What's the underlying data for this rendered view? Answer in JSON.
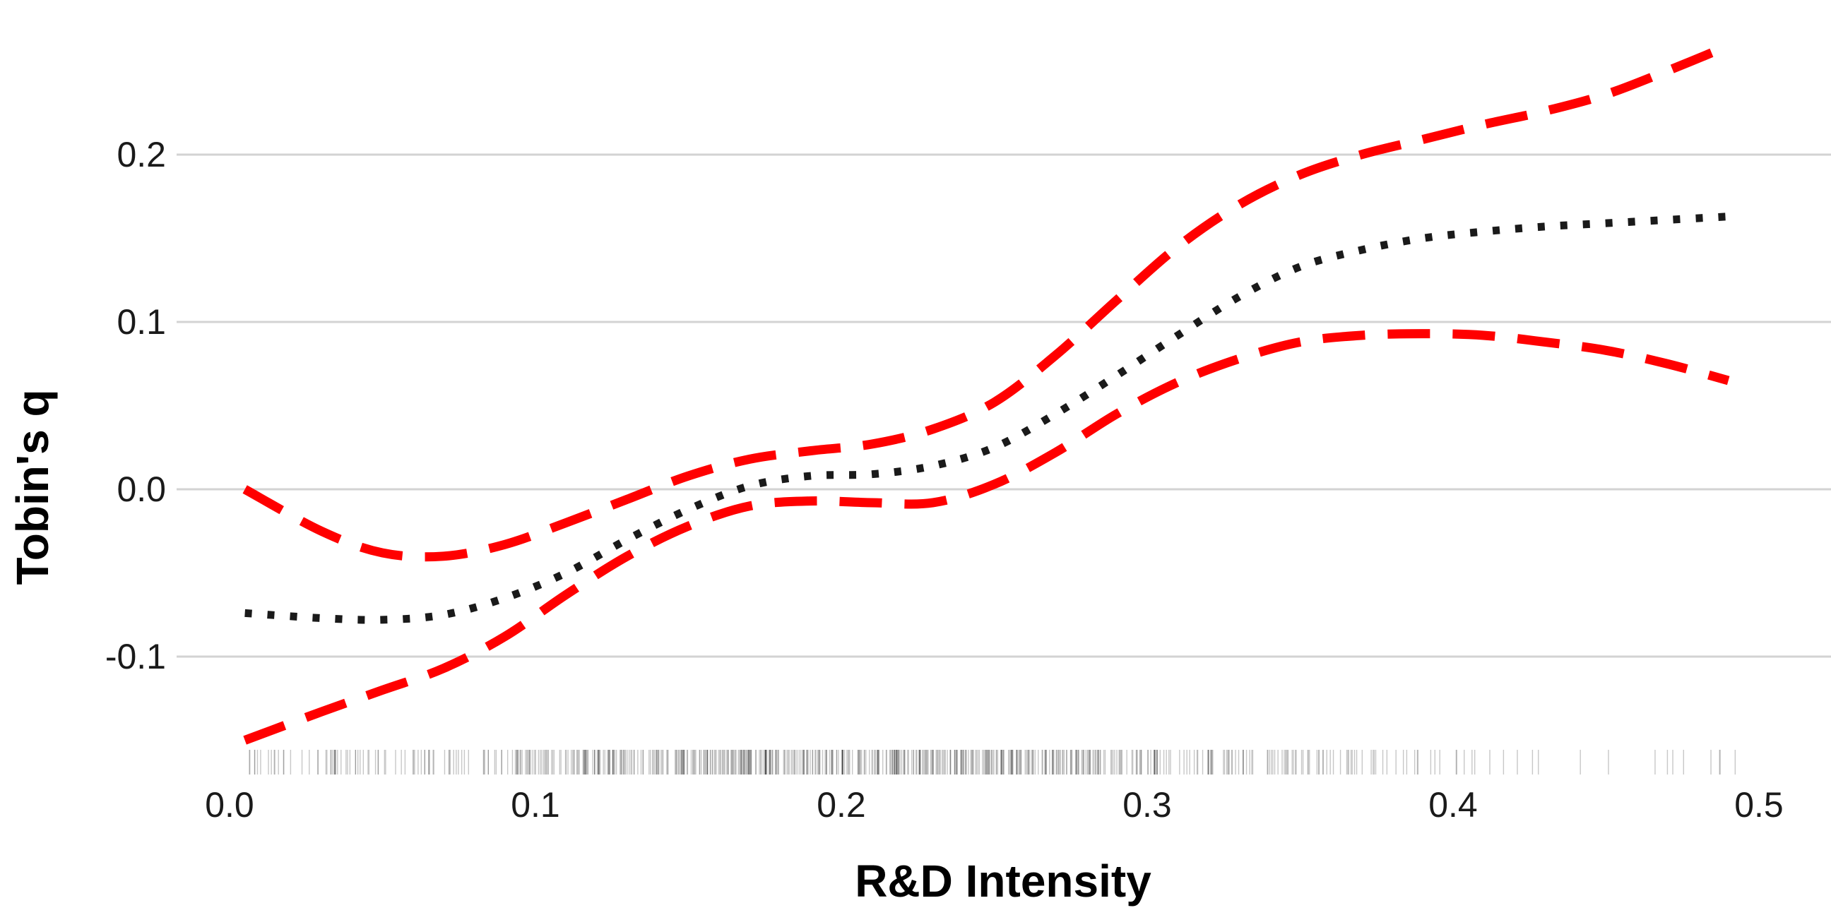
{
  "chart_data": {
    "type": "line",
    "title": "",
    "xlabel": "R&D Intensity",
    "ylabel": "Tobin's q",
    "xlim": [
      0.0,
      0.5
    ],
    "ylim": [
      -0.15,
      0.2
    ],
    "x_ticks": [
      "0.0",
      "0.1",
      "0.2",
      "0.3",
      "0.4",
      "0.5"
    ],
    "y_ticks": [
      "-0.1",
      "0.0",
      "0.1",
      "0.2"
    ],
    "grid": "horizontal",
    "legend": "none",
    "rug": true,
    "series": [
      {
        "role": "estimate",
        "style": "dotted",
        "color": "#1a1a1a",
        "x": [
          0.005,
          0.03,
          0.05,
          0.07,
          0.09,
          0.11,
          0.13,
          0.15,
          0.17,
          0.19,
          0.21,
          0.23,
          0.25,
          0.27,
          0.29,
          0.31,
          0.33,
          0.35,
          0.37,
          0.39,
          0.41,
          0.43,
          0.45,
          0.47,
          0.49
        ],
        "y": [
          -0.074,
          -0.077,
          -0.078,
          -0.075,
          -0.065,
          -0.05,
          -0.03,
          -0.012,
          0.002,
          0.008,
          0.009,
          0.014,
          0.025,
          0.045,
          0.068,
          0.092,
          0.115,
          0.133,
          0.143,
          0.15,
          0.154,
          0.157,
          0.159,
          0.161,
          0.163
        ]
      },
      {
        "role": "upper bound",
        "style": "dashed",
        "color": "#ff0000",
        "x": [
          0.005,
          0.03,
          0.05,
          0.07,
          0.09,
          0.11,
          0.13,
          0.15,
          0.17,
          0.19,
          0.21,
          0.23,
          0.25,
          0.27,
          0.29,
          0.31,
          0.33,
          0.35,
          0.37,
          0.39,
          0.41,
          0.43,
          0.45,
          0.47,
          0.49
        ],
        "y": [
          0.0,
          -0.025,
          -0.038,
          -0.04,
          -0.033,
          -0.02,
          -0.006,
          0.008,
          0.018,
          0.023,
          0.027,
          0.036,
          0.052,
          0.08,
          0.113,
          0.145,
          0.17,
          0.188,
          0.2,
          0.209,
          0.218,
          0.226,
          0.236,
          0.25,
          0.265
        ]
      },
      {
        "role": "lower bound",
        "style": "dashed",
        "color": "#ff0000",
        "x": [
          0.005,
          0.03,
          0.05,
          0.07,
          0.09,
          0.11,
          0.13,
          0.15,
          0.17,
          0.19,
          0.21,
          0.23,
          0.25,
          0.27,
          0.29,
          0.31,
          0.33,
          0.35,
          0.37,
          0.39,
          0.41,
          0.43,
          0.45,
          0.47,
          0.49
        ],
        "y": [
          -0.15,
          -0.133,
          -0.12,
          -0.107,
          -0.088,
          -0.063,
          -0.04,
          -0.022,
          -0.01,
          -0.007,
          -0.008,
          -0.008,
          0.003,
          0.022,
          0.045,
          0.064,
          0.078,
          0.088,
          0.092,
          0.093,
          0.092,
          0.088,
          0.083,
          0.075,
          0.065
        ]
      }
    ]
  }
}
